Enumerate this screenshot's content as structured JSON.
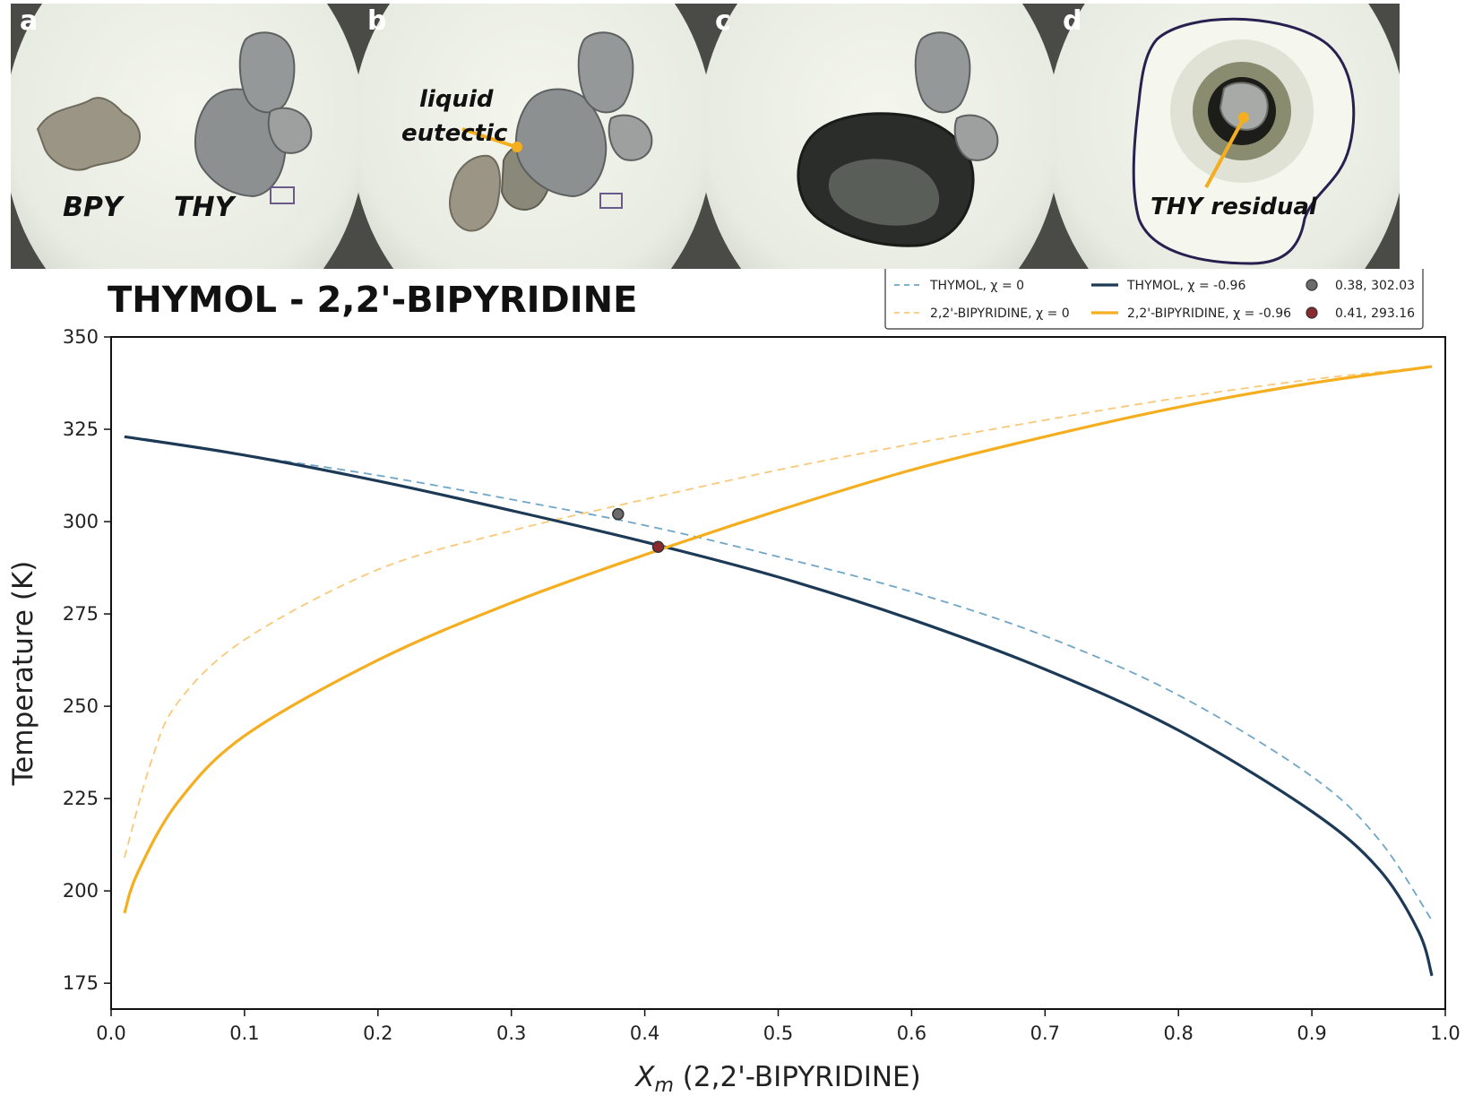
{
  "panels": [
    {
      "letter": "a",
      "labels": [
        "BPY",
        "THY"
      ]
    },
    {
      "letter": "b",
      "labels": [
        "liquid",
        "eutectic"
      ]
    },
    {
      "letter": "c",
      "labels": []
    },
    {
      "letter": "d",
      "labels": [
        "THY residual"
      ]
    }
  ],
  "colors": {
    "thymol": "#1c3a56",
    "thymol_ideal": "#6fa6c8",
    "bpy": "#f4ae1f",
    "bpy_ideal": "#f8c97a",
    "point_ideal": "#6b6b6b",
    "point_real": "#8b2a2e",
    "annotation": "#f4ae1f"
  },
  "chart_data": {
    "type": "line",
    "title": "THYMOL - 2,2'-BIPYRIDINE",
    "xlabel_symbol": "X",
    "xlabel_sub": "m",
    "xlabel_rest": " (2,2'-BIPYRIDINE)",
    "ylabel": "Temperature (K)",
    "xlim": [
      0.0,
      1.0
    ],
    "ylim": [
      168,
      350
    ],
    "xticks": [
      "0.0",
      "0.1",
      "0.2",
      "0.3",
      "0.4",
      "0.5",
      "0.6",
      "0.7",
      "0.8",
      "0.9",
      "1.0"
    ],
    "yticks": [
      "175",
      "200",
      "225",
      "250",
      "275",
      "300",
      "325",
      "350"
    ],
    "legend_position": "top-right",
    "series": [
      {
        "name": "THYMOL, χ = 0",
        "style": "dashed",
        "color": "#6fa6c8",
        "x": [
          0.01,
          0.1,
          0.2,
          0.3,
          0.4,
          0.5,
          0.6,
          0.7,
          0.8,
          0.9,
          0.95,
          0.99
        ],
        "y": [
          323,
          318,
          312.5,
          306,
          299,
          290.5,
          281,
          269,
          253,
          231,
          214,
          192
        ]
      },
      {
        "name": "2,2'-BIPYRIDINE, χ = 0",
        "style": "dashed",
        "color": "#f8c97a",
        "x": [
          0.01,
          0.03,
          0.05,
          0.1,
          0.2,
          0.3,
          0.4,
          0.5,
          0.6,
          0.7,
          0.8,
          0.9,
          0.99
        ],
        "y": [
          209,
          235,
          251,
          268,
          287,
          297.5,
          306,
          314,
          321,
          327.5,
          333.5,
          338.5,
          342
        ]
      },
      {
        "name": "THYMOL, χ = -0.96",
        "style": "solid",
        "color": "#1c3a56",
        "x": [
          0.01,
          0.1,
          0.2,
          0.3,
          0.4,
          0.5,
          0.6,
          0.7,
          0.8,
          0.9,
          0.95,
          0.98,
          0.99
        ],
        "y": [
          323,
          318,
          311,
          303,
          294.5,
          285,
          273.5,
          260,
          243.5,
          221.5,
          206,
          189,
          177
        ]
      },
      {
        "name": "2,2'-BIPYRIDINE, χ = -0.96",
        "style": "solid",
        "color": "#f4ae1f",
        "x": [
          0.01,
          0.02,
          0.05,
          0.1,
          0.2,
          0.3,
          0.4,
          0.5,
          0.6,
          0.7,
          0.8,
          0.9,
          0.99
        ],
        "y": [
          194,
          205,
          224,
          242,
          262.5,
          278,
          291,
          303,
          314,
          323,
          331,
          337.5,
          342
        ]
      }
    ],
    "points": [
      {
        "name": "0.38, 302.03",
        "x": 0.38,
        "y": 302.03,
        "color": "#6b6b6b"
      },
      {
        "name": "0.41, 293.16",
        "x": 0.41,
        "y": 293.16,
        "color": "#8b2a2e"
      }
    ]
  }
}
